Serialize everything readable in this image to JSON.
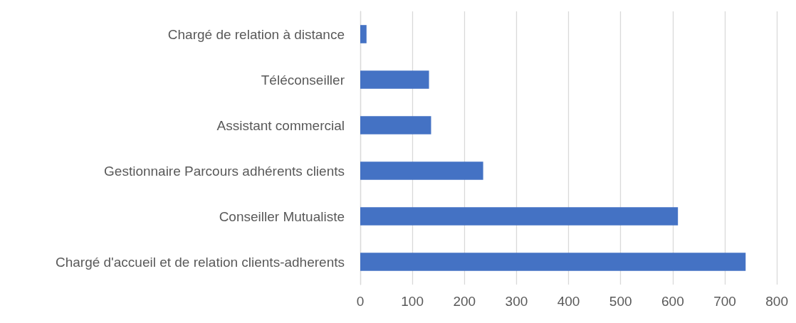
{
  "chart_data": {
    "type": "bar",
    "orientation": "horizontal",
    "categories": [
      "Chargé de relation à distance",
      "Téléconseiller",
      "Assistant commercial",
      "Gestionnaire Parcours adhérents clients",
      "Conseiller Mutualiste",
      "Chargé d'accueil et de relation clients-adherents"
    ],
    "values": [
      12,
      132,
      136,
      236,
      610,
      740
    ],
    "color": "#4472c4",
    "xlim": [
      0,
      800
    ],
    "xticks": [
      0,
      100,
      200,
      300,
      400,
      500,
      600,
      700,
      800
    ],
    "grid": "x"
  }
}
